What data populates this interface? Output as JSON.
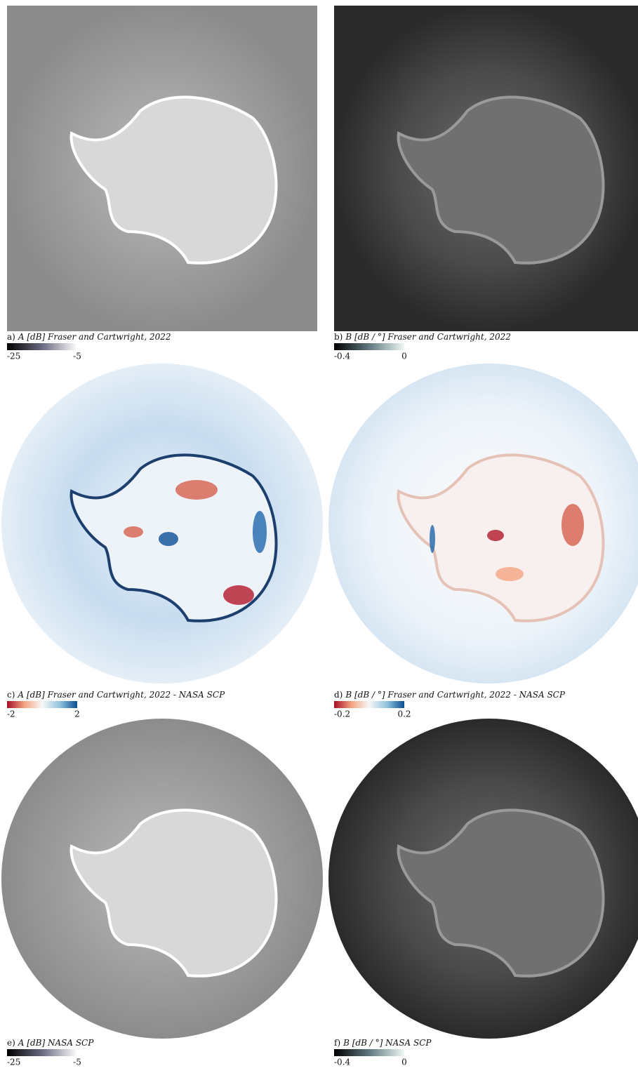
{
  "panels": [
    {
      "label": "a)",
      "caption": "A [dB] Fraser and Cartwright, 2022",
      "cbar_min": "-25",
      "cbar_max": "-5"
    },
    {
      "label": "b)",
      "caption": "B [dB / °] Fraser and Cartwright, 2022",
      "cbar_min": "-0.4",
      "cbar_max": "0"
    },
    {
      "label": "c)",
      "caption": "A [dB] Fraser and Cartwright, 2022 - NASA SCP",
      "cbar_min": "-2",
      "cbar_max": "2"
    },
    {
      "label": "d)",
      "caption": "B [dB / °] Fraser and Cartwright, 2022 - NASA SCP",
      "cbar_min": "-0.2",
      "cbar_max": "0.2"
    },
    {
      "label": "e)",
      "caption": "A [dB] NASA SCP",
      "cbar_min": "-25",
      "cbar_max": "-5"
    },
    {
      "label": "f)",
      "caption": "B [dB / °] NASA SCP",
      "cbar_min": "-0.4",
      "cbar_max": "0"
    }
  ]
}
